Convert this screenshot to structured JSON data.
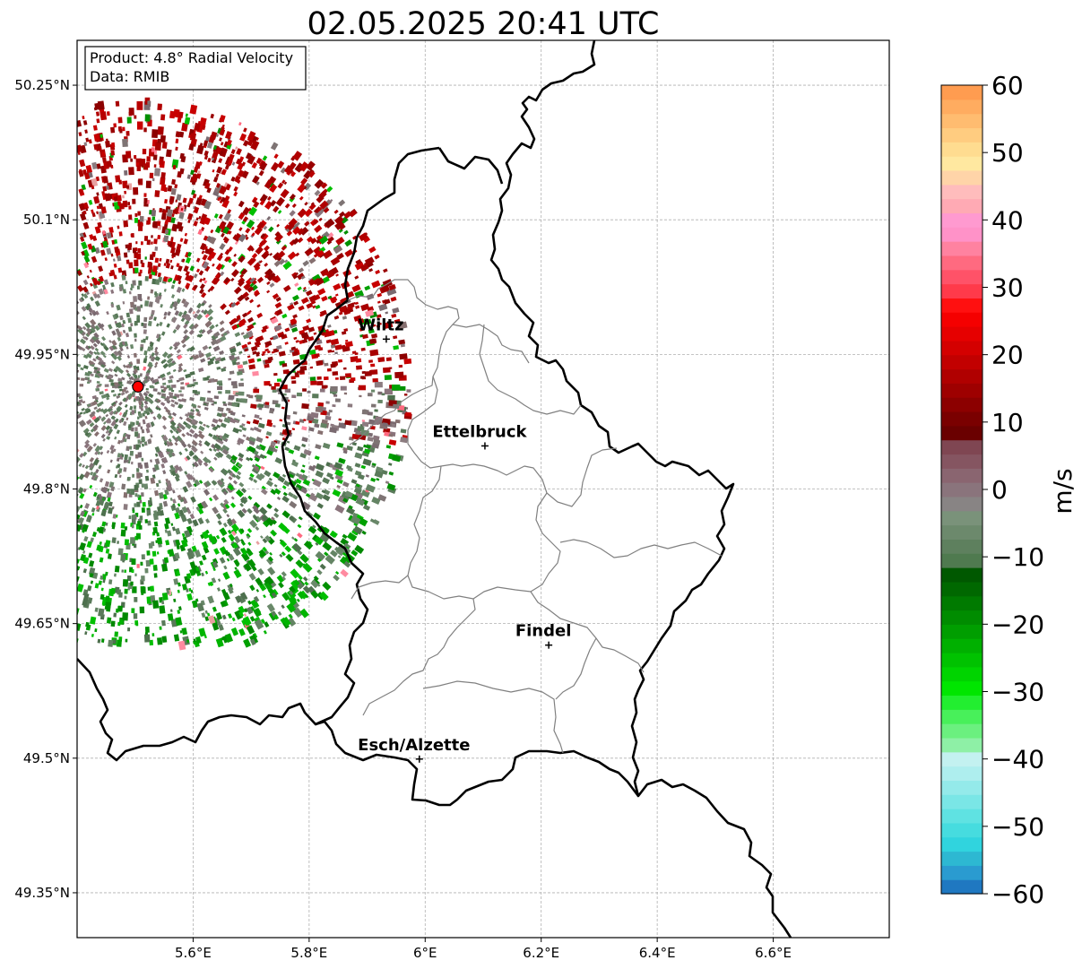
{
  "title": "02.05.2025 20:41 UTC",
  "info_box": {
    "product": "Product: 4.8° Radial Velocity",
    "data": "Data: RMIB"
  },
  "map": {
    "lon_ticks": [
      {
        "value": 5.6,
        "label": "5.6°E"
      },
      {
        "value": 5.8,
        "label": "5.8°E"
      },
      {
        "value": 6.0,
        "label": "6°E"
      },
      {
        "value": 6.2,
        "label": "6.2°E"
      },
      {
        "value": 6.4,
        "label": "6.4°E"
      },
      {
        "value": 6.6,
        "label": "6.6°E"
      }
    ],
    "lat_ticks": [
      {
        "value": 50.25,
        "label": "50.25°N"
      },
      {
        "value": 50.1,
        "label": "50.1°N"
      },
      {
        "value": 49.95,
        "label": "49.95°N"
      },
      {
        "value": 49.8,
        "label": "49.8°N"
      },
      {
        "value": 49.65,
        "label": "49.65°N"
      },
      {
        "value": 49.5,
        "label": "49.5°N"
      },
      {
        "value": 49.35,
        "label": "49.35°N"
      }
    ],
    "lon_range": [
      5.4,
      6.8
    ],
    "lat_range": [
      49.3,
      50.3
    ],
    "radar_site": {
      "lon": 5.505,
      "lat": 49.914
    },
    "cities": [
      {
        "name": "Wiltz",
        "lon": 5.933,
        "lat": 49.967
      },
      {
        "name": "Ettelbruck",
        "lon": 6.103,
        "lat": 49.848
      },
      {
        "name": "Findel",
        "lon": 6.213,
        "lat": 49.626
      },
      {
        "name": "Esch/Alzette",
        "lon": 5.99,
        "lat": 49.499
      }
    ],
    "grid": true
  },
  "colorbar": {
    "label": "m/s",
    "min": -60,
    "max": 60,
    "ticks": [
      {
        "value": 60,
        "label": "60"
      },
      {
        "value": 50,
        "label": "50"
      },
      {
        "value": 40,
        "label": "40"
      },
      {
        "value": 30,
        "label": "30"
      },
      {
        "value": 20,
        "label": "20"
      },
      {
        "value": 10,
        "label": "10"
      },
      {
        "value": 0,
        "label": "0"
      },
      {
        "value": -10,
        "label": "−10"
      },
      {
        "value": -20,
        "label": "−20"
      },
      {
        "value": -30,
        "label": "−30"
      },
      {
        "value": -40,
        "label": "−40"
      },
      {
        "value": -50,
        "label": "−50"
      },
      {
        "value": -60,
        "label": "−60"
      }
    ],
    "colors": [
      "#1f78c1",
      "#2a9bd0",
      "#2db8d2",
      "#30d4de",
      "#46dcdf",
      "#5fe2e2",
      "#7ae6e6",
      "#94eaea",
      "#aeeeee",
      "#c3f1f0",
      "#8ef0a6",
      "#6bf07f",
      "#48f05a",
      "#22ee30",
      "#00e600",
      "#00d400",
      "#00c200",
      "#00b000",
      "#009e00",
      "#008c00",
      "#007a00",
      "#006800",
      "#005800",
      "#4f7a4f",
      "#5e805e",
      "#6c896c",
      "#7a927a",
      "#888484",
      "#8a747c",
      "#8a6570",
      "#855561",
      "#7f4652",
      "#6a0000",
      "#7a0000",
      "#8c0000",
      "#9e0000",
      "#b00000",
      "#c20000",
      "#d40000",
      "#e60000",
      "#f50000",
      "#ff1010",
      "#ff3a4a",
      "#ff5268",
      "#ff6a80",
      "#ff82a0",
      "#ff92c8",
      "#ff9ad0",
      "#ffaab4",
      "#ffbcbc",
      "#ffd4a8",
      "#ffe8a0",
      "#ffdc90",
      "#ffcc80",
      "#ffbc70",
      "#ffac60",
      "#ff9c50"
    ]
  },
  "velocity_field": {
    "description_colors": {
      "near_zero": "#7e7474",
      "inbound": "#5a7a5a",
      "outbound": "#a80000",
      "strong_inbound": "#00a000"
    }
  }
}
